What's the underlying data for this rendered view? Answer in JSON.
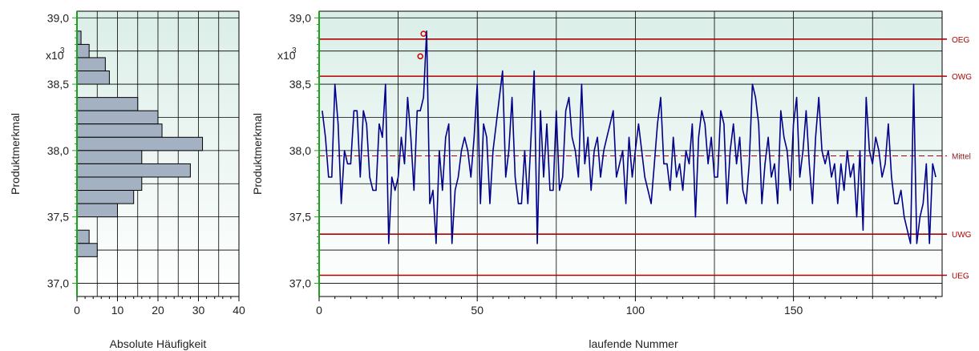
{
  "chart_data": [
    {
      "type": "bar",
      "orientation": "horizontal",
      "xlabel": "Absolute Häufigkeit",
      "ylabel": "Produktmerkmal",
      "scale_label_main": "x10",
      "scale_label_exp": "3",
      "xlim": [
        0,
        40
      ],
      "ylim": [
        36.9,
        39.05
      ],
      "x_ticks": [
        "0",
        "10",
        "20",
        "30",
        "40"
      ],
      "y_ticks": [
        {
          "value": 39.0,
          "label": "39,0"
        },
        {
          "value": 38.5,
          "label": "38,5"
        },
        {
          "value": 38.0,
          "label": "38,0"
        },
        {
          "value": 37.5,
          "label": "37,5"
        },
        {
          "value": 37.0,
          "label": "37,0"
        }
      ],
      "bin_width": 0.1,
      "bins": [
        {
          "from": 38.8,
          "to": 38.9,
          "count": 1
        },
        {
          "from": 38.7,
          "to": 38.8,
          "count": 3
        },
        {
          "from": 38.6,
          "to": 38.7,
          "count": 7
        },
        {
          "from": 38.5,
          "to": 38.6,
          "count": 8
        },
        {
          "from": 38.4,
          "to": 38.5,
          "count": 0
        },
        {
          "from": 38.3,
          "to": 38.4,
          "count": 15
        },
        {
          "from": 38.2,
          "to": 38.3,
          "count": 20
        },
        {
          "from": 38.1,
          "to": 38.2,
          "count": 21
        },
        {
          "from": 38.0,
          "to": 38.1,
          "count": 31
        },
        {
          "from": 37.9,
          "to": 38.0,
          "count": 16
        },
        {
          "from": 37.8,
          "to": 37.9,
          "count": 28
        },
        {
          "from": 37.7,
          "to": 37.8,
          "count": 16
        },
        {
          "from": 37.6,
          "to": 37.7,
          "count": 14
        },
        {
          "from": 37.5,
          "to": 37.6,
          "count": 10
        },
        {
          "from": 37.4,
          "to": 37.5,
          "count": 0
        },
        {
          "from": 37.3,
          "to": 37.4,
          "count": 3
        },
        {
          "from": 37.2,
          "to": 37.3,
          "count": 5
        }
      ],
      "colors": {
        "bar_fill": "#a3b1c2",
        "bar_stroke": "#000000",
        "axis_left": "#1aa21a"
      }
    },
    {
      "type": "line",
      "xlabel": "laufende Nummer",
      "ylabel": "Produktmerkmal",
      "scale_label_main": "x10",
      "scale_label_exp": "3",
      "xlim": [
        0,
        197
      ],
      "ylim": [
        36.9,
        39.05
      ],
      "x_ticks": [
        "0",
        "50",
        "100",
        "150"
      ],
      "y_ticks": [
        {
          "value": 39.0,
          "label": "39,0"
        },
        {
          "value": 38.5,
          "label": "38,5"
        },
        {
          "value": 38.0,
          "label": "38,0"
        },
        {
          "value": 37.5,
          "label": "37,5"
        },
        {
          "value": 37.0,
          "label": "37,0"
        }
      ],
      "limits": [
        {
          "name": "OEG",
          "value": 38.84,
          "style": "solid"
        },
        {
          "name": "OWG",
          "value": 38.56,
          "style": "solid"
        },
        {
          "name": "Mittel",
          "value": 37.96,
          "style": "dashed"
        },
        {
          "name": "UWG",
          "value": 37.37,
          "style": "solid"
        },
        {
          "name": "UEG",
          "value": 37.06,
          "style": "solid"
        }
      ],
      "values": [
        38.3,
        38.1,
        37.8,
        37.8,
        38.5,
        38.2,
        37.6,
        38.0,
        37.9,
        37.9,
        38.3,
        38.3,
        37.8,
        38.3,
        38.2,
        37.8,
        37.7,
        37.7,
        38.2,
        38.1,
        38.5,
        37.3,
        37.8,
        37.7,
        37.8,
        38.1,
        37.9,
        38.4,
        38.1,
        37.7,
        38.3,
        38.3,
        38.4,
        38.9,
        37.6,
        37.7,
        37.3,
        38.0,
        37.7,
        38.1,
        38.2,
        37.3,
        37.7,
        37.8,
        38.0,
        38.1,
        38.0,
        37.8,
        38.1,
        38.5,
        37.6,
        38.2,
        38.1,
        37.6,
        38.0,
        38.2,
        38.4,
        38.6,
        37.8,
        38.0,
        38.4,
        37.8,
        37.6,
        37.6,
        38.0,
        37.6,
        38.1,
        38.6,
        37.3,
        38.3,
        37.8,
        38.2,
        37.7,
        37.7,
        38.3,
        37.7,
        37.8,
        38.3,
        38.4,
        38.1,
        38.0,
        37.8,
        38.5,
        37.9,
        38.1,
        37.7,
        38.0,
        38.1,
        37.8,
        38.0,
        38.1,
        38.2,
        38.3,
        37.8,
        37.9,
        38.0,
        37.6,
        38.1,
        37.8,
        38.0,
        38.2,
        38.0,
        37.8,
        37.7,
        37.6,
        37.9,
        38.2,
        38.4,
        37.9,
        37.9,
        37.7,
        38.1,
        37.8,
        37.9,
        37.7,
        38.0,
        37.9,
        38.2,
        37.5,
        38.1,
        38.3,
        38.2,
        37.9,
        38.1,
        37.8,
        37.8,
        38.3,
        38.2,
        37.6,
        38.0,
        38.2,
        37.9,
        38.1,
        37.7,
        37.6,
        37.9,
        38.5,
        38.4,
        38.2,
        37.6,
        37.9,
        38.1,
        37.8,
        37.9,
        37.6,
        38.3,
        38.1,
        38.0,
        37.7,
        38.2,
        38.4,
        37.8,
        38.0,
        38.3,
        37.9,
        37.6,
        38.1,
        38.4,
        38.0,
        37.9,
        38.0,
        37.8,
        37.9,
        37.6,
        37.9,
        37.7,
        38.0,
        37.8,
        37.9,
        37.5,
        38.0,
        37.4,
        38.4,
        38.0,
        37.9,
        38.1,
        38.0,
        37.8,
        37.9,
        38.2,
        37.8,
        37.6,
        37.6,
        37.7,
        37.5,
        37.4,
        37.3,
        38.5,
        37.3,
        37.5,
        37.6,
        37.9,
        37.3,
        37.9,
        37.8
      ],
      "out_of_limit_points": [
        {
          "x": 32,
          "y": 38.71
        },
        {
          "x": 33,
          "y": 38.88
        }
      ],
      "colors": {
        "line": "#00008b",
        "limit": "#b00000",
        "marker": "#cc0000",
        "axis_left": "#1aa21a"
      }
    }
  ]
}
